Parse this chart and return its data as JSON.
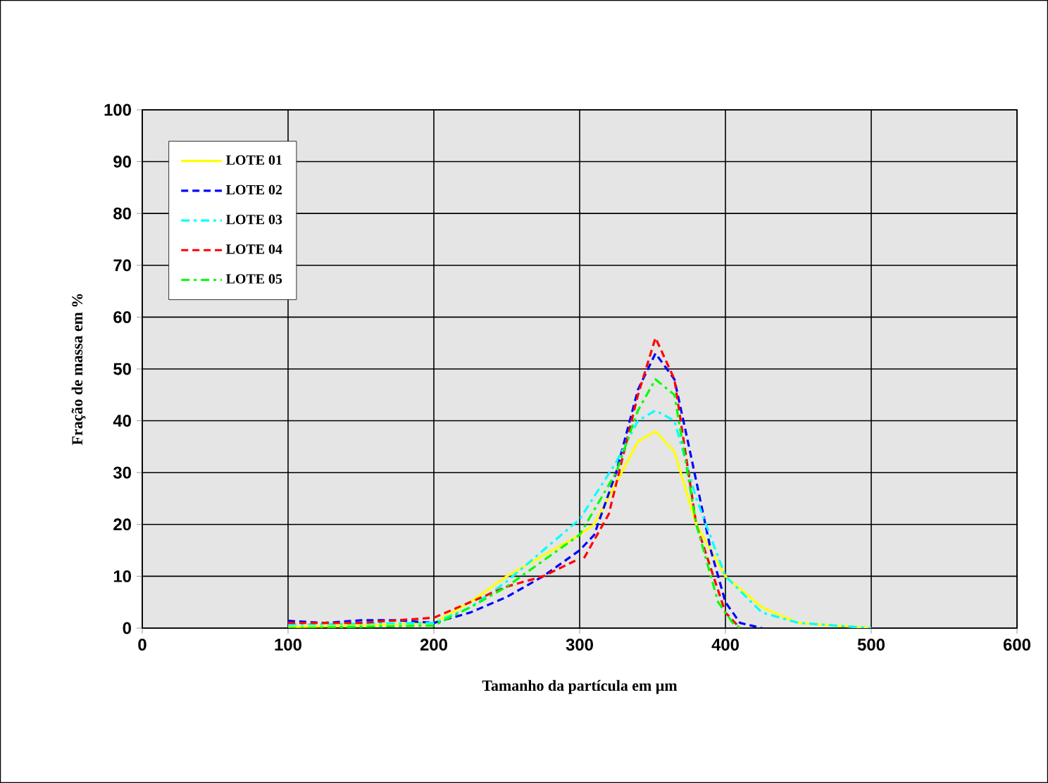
{
  "chart_data": {
    "type": "line",
    "xlabel": "Tamanho da partícula em µm",
    "ylabel": "Fração de massa em %",
    "xlim": [
      0,
      600
    ],
    "xticks": [
      0,
      100,
      200,
      300,
      400,
      500,
      600
    ],
    "ylim": [
      0,
      100
    ],
    "yticks": [
      0,
      10,
      20,
      30,
      40,
      50,
      60,
      70,
      80,
      90,
      100
    ],
    "grid": true,
    "legend": "top left",
    "marker": "none",
    "series": [
      {
        "name": "LOTE 01",
        "color": "#ffff00",
        "line_style": "solid",
        "x": [
          100,
          150,
          200,
          225,
          250,
          275,
          300,
          310,
          325,
          340,
          352,
          365,
          380,
          400,
          425,
          450,
          500
        ],
        "values": [
          0.2,
          0.5,
          1,
          5,
          10,
          14,
          18,
          20,
          28,
          36,
          38,
          34,
          20,
          10,
          4,
          1,
          0
        ]
      },
      {
        "name": "LOTE 02",
        "color": "#0000ff",
        "line_style": "dashed",
        "x": [
          100,
          125,
          150,
          175,
          200,
          225,
          250,
          275,
          300,
          310,
          325,
          340,
          352,
          365,
          375,
          390,
          400,
          410,
          425
        ],
        "values": [
          1.4,
          1,
          1.5,
          1.5,
          1,
          3,
          6,
          10,
          15,
          18,
          30,
          46,
          53,
          48,
          35,
          15,
          5,
          1,
          0
        ]
      },
      {
        "name": "LOTE 03",
        "color": "#00ffff",
        "line_style": "dashdot",
        "x": [
          100,
          200,
          225,
          250,
          275,
          300,
          325,
          340,
          352,
          365,
          380,
          400,
          425,
          450,
          500
        ],
        "values": [
          0.7,
          1,
          4,
          9,
          15,
          21,
          32,
          40,
          42,
          40,
          25,
          10,
          3,
          1,
          0
        ]
      },
      {
        "name": "LOTE 04",
        "color": "#ff0000",
        "line_style": "dashed",
        "x": [
          100,
          150,
          200,
          225,
          250,
          275,
          297,
          300,
          303,
          320,
          340,
          352,
          365,
          380,
          400,
          410
        ],
        "values": [
          1,
          1,
          2,
          5,
          8,
          10,
          13,
          null,
          13.5,
          22,
          45,
          56,
          48,
          20,
          3,
          0
        ]
      },
      {
        "name": "LOTE 05",
        "color": "#00ff00",
        "line_style": "dashdot",
        "x": [
          100,
          200,
          225,
          250,
          275,
          300,
          325,
          340,
          352,
          365,
          380,
          395,
          405,
          410
        ],
        "values": [
          0,
          0.5,
          4,
          8,
          13,
          18,
          30,
          42,
          48,
          45,
          20,
          5,
          1,
          0
        ]
      }
    ]
  }
}
